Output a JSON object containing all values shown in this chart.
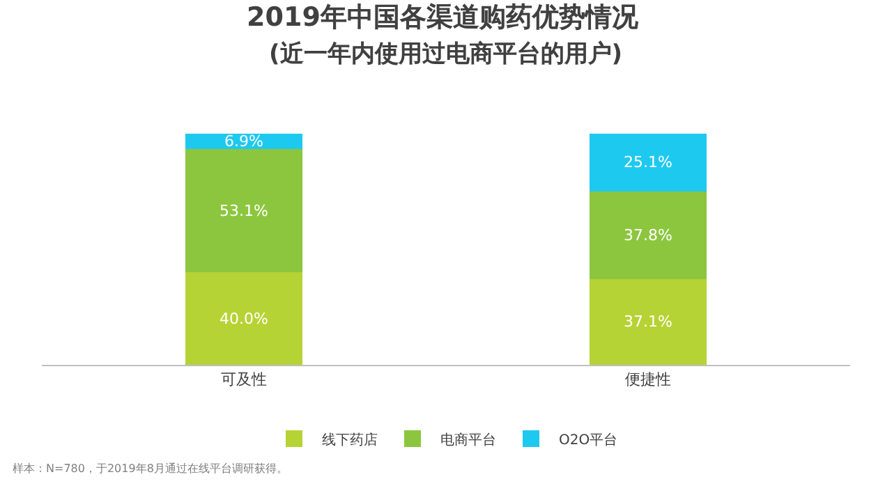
{
  "chart_data": {
    "type": "bar",
    "stacked": true,
    "title": "2019年中国各渠道购药优势情况",
    "subtitle": "(近一年内使用过电商平台的用户)",
    "categories": [
      "可及性",
      "便捷性"
    ],
    "series": [
      {
        "name": "线下药店",
        "color": "#b5d334",
        "values": [
          40.0,
          37.1
        ],
        "value_labels": [
          "40.0%",
          "37.1%"
        ]
      },
      {
        "name": "电商平台",
        "color": "#8cc63e",
        "values": [
          53.1,
          37.8
        ],
        "value_labels": [
          "53.1%",
          "37.8%"
        ]
      },
      {
        "name": "O2O平台",
        "color": "#1ec9f0",
        "values": [
          6.9,
          25.1
        ],
        "value_labels": [
          "6.9%",
          "25.1%"
        ]
      }
    ],
    "legend": "bottom",
    "grid": false,
    "tick_labels": "x",
    "annotations": [
      "样本：N=780，于2019年8月通过在线平台调研获得。"
    ]
  }
}
